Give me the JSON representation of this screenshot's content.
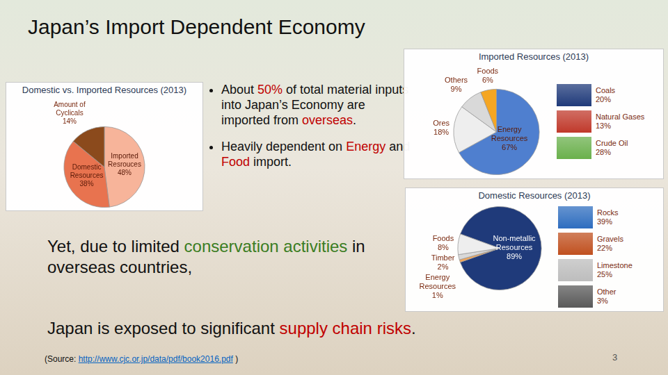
{
  "slide": {
    "title": "Japan’s Import Dependent Economy",
    "bullets": [
      [
        {
          "text": "About "
        },
        {
          "text": "50%",
          "color": "#c00000"
        },
        {
          "text": " of total material inputs into Japan’s Economy are imported from "
        },
        {
          "text": "overseas",
          "color": "#c00000"
        },
        {
          "text": "."
        }
      ],
      [
        {
          "text": "Heavily dependent on "
        },
        {
          "text": "Energy",
          "color": "#c00000"
        },
        {
          "text": " and "
        },
        {
          "text": "Food",
          "color": "#c00000"
        },
        {
          "text": " import."
        }
      ]
    ],
    "statements": [
      [
        {
          "text": "Yet, due to limited "
        },
        {
          "text": "conservation activities",
          "color": "#3a7d22"
        },
        {
          "text": " in overseas countries,"
        }
      ],
      [
        {
          "text": "Japan is exposed to significant "
        },
        {
          "text": "supply chain risks",
          "color": "#c00000"
        },
        {
          "text": "."
        }
      ]
    ],
    "source": [
      {
        "text": "(Source: "
      },
      {
        "text": "http://www.cjc.or.jp/data/pdf/book2016.pdf",
        "color": "#0563c1"
      },
      {
        "text": " )"
      }
    ],
    "page_number": "3"
  },
  "chart_data": [
    {
      "type": "pie",
      "title": "Domestic vs. Imported Resources (2013)",
      "categories": [
        "Imported Resrouces",
        "Domestic Resources",
        "Amount of Cyclicals"
      ],
      "values": [
        48,
        38,
        14
      ],
      "value_labels": [
        "48%",
        "38%",
        "14%"
      ],
      "colors": [
        "#f7b49a",
        "#e8734f",
        "#8b4a1c"
      ],
      "data_labels": true
    },
    {
      "type": "pie",
      "title": "Imported Resources (2013)",
      "categories": [
        "Energy Resources",
        "Ores",
        "Others",
        "Foods"
      ],
      "values": [
        67,
        18,
        9,
        6
      ],
      "value_labels": [
        "67%",
        "18%",
        "9%",
        "6%"
      ],
      "colors": [
        "#4f7fcf",
        "#eeeeee",
        "#d9d9d9",
        "#f5a623"
      ],
      "data_labels": true,
      "breakdown": {
        "categories": [
          "Coals",
          "Natural Gases",
          "Crude Oil"
        ],
        "values": [
          20,
          13,
          28
        ],
        "value_labels": [
          "20%",
          "13%",
          "28%"
        ],
        "colors": [
          "#1f3a7a",
          "#c0392b",
          "#6ab04c"
        ]
      }
    },
    {
      "type": "pie",
      "title": "Domestic Resources (2013)",
      "categories": [
        "Non-metallic Resources",
        "Energy Resources",
        "Timber",
        "Foods"
      ],
      "values": [
        89,
        1,
        2,
        8
      ],
      "value_labels": [
        "89%",
        "1%",
        "2%",
        "8%"
      ],
      "colors": [
        "#1f3a7a",
        "#f2a65a",
        "#d9d9d9",
        "#eeeeee"
      ],
      "data_labels": true,
      "breakdown": {
        "categories": [
          "Rocks",
          "Gravels",
          "Limestone",
          "Other"
        ],
        "values": [
          39,
          22,
          25,
          3
        ],
        "value_labels": [
          "39%",
          "22%",
          "25%",
          "3%"
        ],
        "colors": [
          "#2e6dbf",
          "#c0501f",
          "#bdbdbd",
          "#595959"
        ]
      }
    }
  ]
}
